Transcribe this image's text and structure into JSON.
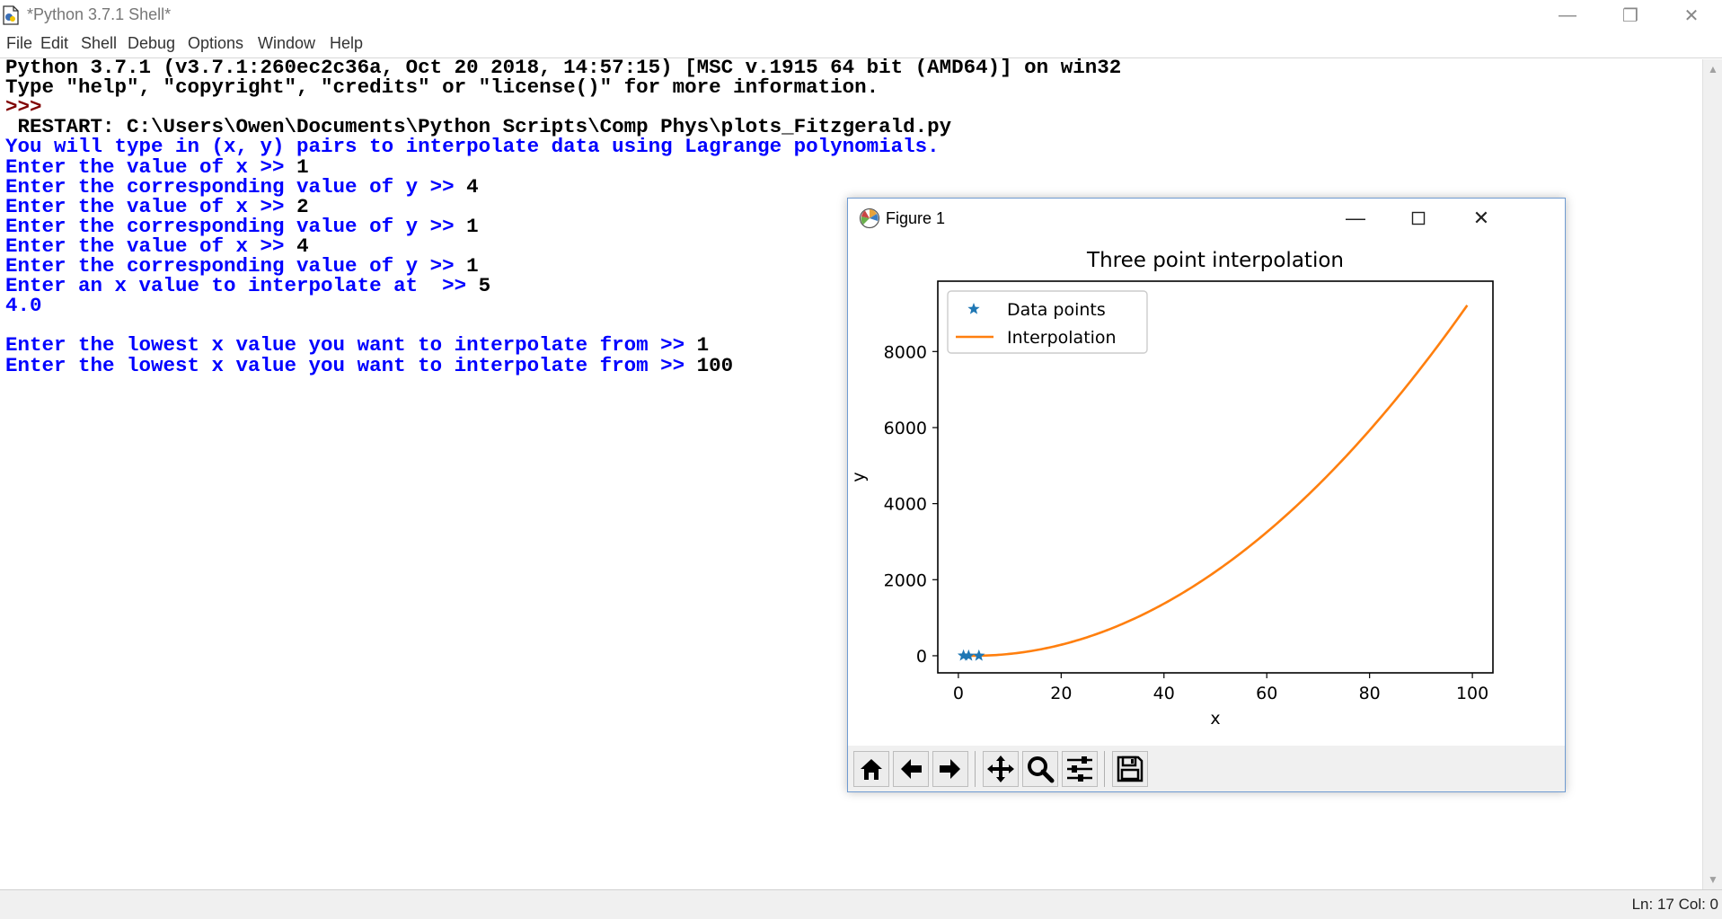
{
  "window": {
    "title": "*Python 3.7.1 Shell*",
    "minimize_glyph": "—",
    "restore_glyph": "❐",
    "close_glyph": "✕"
  },
  "menu": [
    "File",
    "Edit",
    "Shell",
    "Debug",
    "Options",
    "Window",
    "Help"
  ],
  "shell": {
    "lines": [
      {
        "text": "Python 3.7.1 (v3.7.1:260ec2c36a, Oct 20 2018, 14:57:15) [MSC v.1915 64 bit (AMD64)] on win32",
        "style": "output"
      },
      {
        "text": "Type \"help\", \"copyright\", \"credits\" or \"license()\" for more information.",
        "style": "output"
      },
      {
        "text": ">>> ",
        "style": "prompt"
      },
      {
        "text": " RESTART: C:\\Users\\Owen\\Documents\\Python Scripts\\Comp Phys\\plots_Fitzgerald.py",
        "style": "output"
      },
      {
        "text": "You will type in (x, y) pairs to interpolate data using Lagrange polynomials.",
        "style": "stdout"
      },
      {
        "text": "Enter the value of x >> ",
        "style": "stdout",
        "input": "1"
      },
      {
        "text": "Enter the corresponding value of y >> ",
        "style": "stdout",
        "input": "4"
      },
      {
        "text": "Enter the value of x >> ",
        "style": "stdout",
        "input": "2"
      },
      {
        "text": "Enter the corresponding value of y >> ",
        "style": "stdout",
        "input": "1"
      },
      {
        "text": "Enter the value of x >> ",
        "style": "stdout",
        "input": "4"
      },
      {
        "text": "Enter the corresponding value of y >> ",
        "style": "stdout",
        "input": "1"
      },
      {
        "text": "Enter an x value to interpolate at  >> ",
        "style": "stdout",
        "input": "5"
      },
      {
        "text": "4.0",
        "style": "stdout"
      },
      {
        "text": "",
        "style": "stdout"
      },
      {
        "text": "Enter the lowest x value you want to interpolate from >> ",
        "style": "stdout",
        "input": "1"
      },
      {
        "text": "Enter the lowest x value you want to interpolate from >> ",
        "style": "stdout",
        "input": "100"
      }
    ]
  },
  "status": {
    "position": "Ln: 17  Col: 0"
  },
  "figure": {
    "title": "Figure 1",
    "toolbar": [
      {
        "name": "home-icon"
      },
      {
        "name": "back-arrow-icon"
      },
      {
        "name": "forward-arrow-icon"
      },
      {
        "name": "pan-icon"
      },
      {
        "name": "zoom-icon"
      },
      {
        "name": "configure-subplots-icon"
      },
      {
        "name": "save-icon"
      }
    ]
  },
  "chart_data": {
    "type": "line",
    "title": "Three point interpolation",
    "xlabel": "x",
    "ylabel": "y",
    "xlim": [
      -4,
      104
    ],
    "ylim": [
      -450,
      9850
    ],
    "xticks": [
      0,
      20,
      40,
      60,
      80,
      100
    ],
    "yticks": [
      0,
      2000,
      4000,
      6000,
      8000
    ],
    "grid": false,
    "legend_position": "top-left",
    "series": [
      {
        "name": "Data points",
        "kind": "scatter",
        "marker": "star",
        "color": "#1f77b4",
        "x": [
          1,
          2,
          4
        ],
        "y": [
          4,
          1,
          1
        ]
      },
      {
        "name": "Interpolation",
        "kind": "line",
        "color": "#ff7f0e",
        "function": "y = x^2 - 6x + 9",
        "x_range": [
          1,
          99
        ],
        "x": [
          1,
          10,
          20,
          30,
          40,
          50,
          60,
          70,
          80,
          90,
          99
        ],
        "y": [
          4,
          49,
          289,
          729,
          1369,
          2209,
          3249,
          4489,
          5929,
          7569,
          9216
        ]
      }
    ]
  }
}
